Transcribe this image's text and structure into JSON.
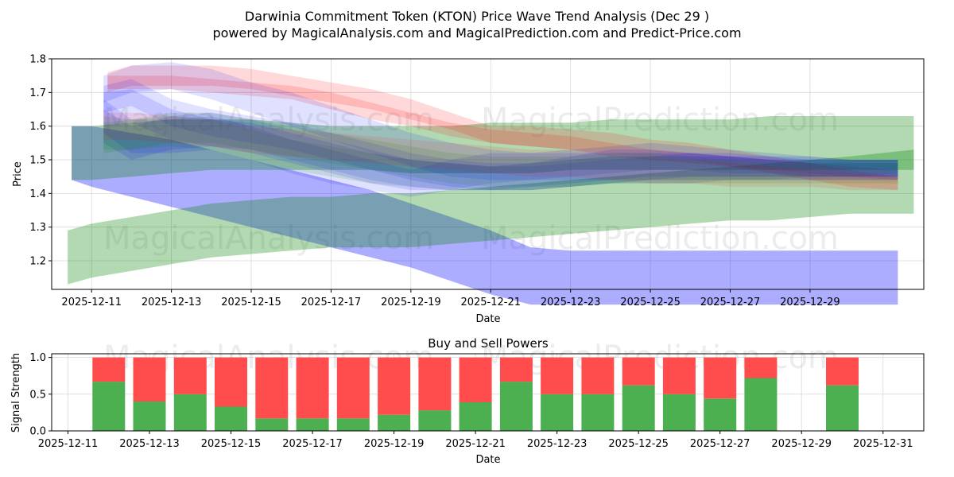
{
  "chart_data": [
    {
      "type": "area",
      "title_line1": "Darwinia Commitment Token (KTON) Price Wave Trend Analysis (Dec 29 )",
      "title_line2": "powered by MagicalAnalysis.com and MagicalPrediction.com and Predict-Price.com",
      "xlabel": "Date",
      "ylabel": "Price",
      "ylim": [
        1.115,
        1.8
      ],
      "xlim": [
        "2025-12-10",
        "2026-01-01"
      ],
      "y_ticks": [
        "1.2",
        "1.3",
        "1.4",
        "1.5",
        "1.6",
        "1.7",
        "1.8"
      ],
      "x_ticks": [
        "2025-12-11",
        "2025-12-13",
        "2025-12-15",
        "2025-12-17",
        "2025-12-19",
        "2025-12-21",
        "2025-12-23",
        "2025-12-25",
        "2025-12-27",
        "2025-12-29"
      ],
      "watermarks": [
        "MagicalAnalysis.com",
        "MagicalPrediction.com",
        "MagicalAnalysis.com",
        "MagicalPrediction.com"
      ],
      "grid": true,
      "bands": [
        {
          "color": "#0000ff",
          "opacity": 0.32,
          "x": [
            10.5,
            11,
            12,
            13,
            14,
            15,
            16,
            17,
            18,
            19,
            20,
            21,
            22,
            23,
            24,
            25,
            26,
            27,
            28,
            29,
            30,
            31.2
          ],
          "upper": [
            1.6,
            1.6,
            1.58,
            1.56,
            1.53,
            1.5,
            1.47,
            1.44,
            1.41,
            1.37,
            1.33,
            1.29,
            1.24,
            1.23,
            1.23,
            1.23,
            1.23,
            1.23,
            1.23,
            1.23,
            1.23,
            1.23
          ],
          "lower": [
            1.44,
            1.42,
            1.39,
            1.36,
            1.33,
            1.3,
            1.27,
            1.24,
            1.21,
            1.18,
            1.14,
            1.1,
            1.07,
            1.07,
            1.07,
            1.07,
            1.07,
            1.07,
            1.07,
            1.07,
            1.07,
            1.07
          ]
        },
        {
          "color": "#008000",
          "opacity": 0.3,
          "x": [
            10.4,
            11,
            12,
            13,
            14,
            15,
            16,
            17,
            18,
            19,
            20,
            21,
            22,
            23,
            24,
            25,
            26,
            27,
            28,
            29,
            30,
            31.6
          ],
          "upper": [
            1.29,
            1.31,
            1.33,
            1.35,
            1.37,
            1.38,
            1.39,
            1.39,
            1.4,
            1.4,
            1.41,
            1.42,
            1.43,
            1.44,
            1.45,
            1.46,
            1.47,
            1.48,
            1.49,
            1.5,
            1.51,
            1.53
          ],
          "lower": [
            1.13,
            1.15,
            1.17,
            1.19,
            1.21,
            1.22,
            1.23,
            1.24,
            1.24,
            1.24,
            1.25,
            1.26,
            1.27,
            1.28,
            1.29,
            1.3,
            1.31,
            1.32,
            1.32,
            1.33,
            1.34,
            1.34
          ]
        },
        {
          "color": "#008000",
          "opacity": 0.3,
          "x": [
            10.5,
            11,
            12,
            13,
            14,
            15,
            16,
            17,
            18,
            19,
            20,
            21,
            22,
            23,
            24,
            25,
            26,
            27,
            28,
            29,
            30,
            31.6
          ],
          "upper": [
            1.6,
            1.6,
            1.61,
            1.62,
            1.62,
            1.62,
            1.61,
            1.6,
            1.6,
            1.6,
            1.6,
            1.61,
            1.61,
            1.61,
            1.62,
            1.62,
            1.62,
            1.62,
            1.63,
            1.63,
            1.63,
            1.63
          ],
          "lower": [
            1.44,
            1.44,
            1.45,
            1.46,
            1.47,
            1.47,
            1.47,
            1.47,
            1.47,
            1.46,
            1.46,
            1.46,
            1.46,
            1.47,
            1.47,
            1.47,
            1.47,
            1.47,
            1.47,
            1.47,
            1.47,
            1.47
          ]
        },
        {
          "color": "#ff0000",
          "opacity": 0.15,
          "x": [
            11.4,
            12,
            13,
            14,
            15,
            16,
            17,
            18,
            19,
            20,
            21,
            22,
            23,
            24,
            25,
            26,
            27,
            28,
            29,
            30,
            31.2
          ],
          "upper": [
            1.76,
            1.78,
            1.78,
            1.78,
            1.77,
            1.75,
            1.73,
            1.71,
            1.68,
            1.64,
            1.6,
            1.6,
            1.59,
            1.58,
            1.56,
            1.55,
            1.53,
            1.51,
            1.49,
            1.47,
            1.45
          ],
          "lower": [
            1.7,
            1.72,
            1.72,
            1.72,
            1.71,
            1.69,
            1.67,
            1.65,
            1.62,
            1.59,
            1.55,
            1.54,
            1.53,
            1.52,
            1.51,
            1.5,
            1.48,
            1.46,
            1.44,
            1.42,
            1.41
          ]
        },
        {
          "color": "#ff0000",
          "opacity": 0.15,
          "x": [
            11.4,
            12,
            13,
            14,
            15,
            16,
            17,
            18,
            19,
            20,
            21,
            22,
            23,
            24,
            25,
            26,
            27,
            28,
            29,
            30,
            31.2
          ],
          "upper": [
            1.75,
            1.75,
            1.75,
            1.74,
            1.73,
            1.72,
            1.7,
            1.67,
            1.64,
            1.61,
            1.59,
            1.58,
            1.57,
            1.55,
            1.53,
            1.52,
            1.51,
            1.5,
            1.49,
            1.48,
            1.47
          ],
          "lower": [
            1.71,
            1.71,
            1.71,
            1.7,
            1.69,
            1.68,
            1.65,
            1.62,
            1.6,
            1.57,
            1.55,
            1.54,
            1.53,
            1.51,
            1.5,
            1.49,
            1.48,
            1.47,
            1.46,
            1.45,
            1.44
          ]
        },
        {
          "color": "#0000ff",
          "opacity": 0.12,
          "x": [
            11.3,
            12,
            13,
            14,
            15,
            16,
            17,
            18,
            19,
            20,
            21,
            22,
            23,
            24,
            25,
            26,
            27,
            28,
            29,
            30,
            31.2
          ],
          "upper": [
            1.75,
            1.78,
            1.79,
            1.77,
            1.73,
            1.7,
            1.66,
            1.62,
            1.58,
            1.55,
            1.53,
            1.52,
            1.52,
            1.52,
            1.52,
            1.52,
            1.51,
            1.51,
            1.5,
            1.5,
            1.5
          ],
          "lower": [
            1.67,
            1.7,
            1.71,
            1.68,
            1.64,
            1.6,
            1.56,
            1.52,
            1.48,
            1.45,
            1.44,
            1.44,
            1.44,
            1.44,
            1.45,
            1.45,
            1.45,
            1.45,
            1.45,
            1.45,
            1.45
          ]
        },
        {
          "color": "#0000ff",
          "opacity": 0.12,
          "x": [
            11.3,
            12,
            13,
            14,
            15,
            16,
            17,
            18,
            19,
            20,
            21,
            22,
            23,
            24,
            25,
            26,
            27,
            28,
            29,
            30,
            31.2
          ],
          "upper": [
            1.72,
            1.74,
            1.68,
            1.65,
            1.63,
            1.61,
            1.58,
            1.55,
            1.52,
            1.5,
            1.49,
            1.49,
            1.5,
            1.51,
            1.51,
            1.51,
            1.51,
            1.5,
            1.5,
            1.5,
            1.5
          ],
          "lower": [
            1.64,
            1.66,
            1.6,
            1.57,
            1.55,
            1.53,
            1.5,
            1.47,
            1.44,
            1.42,
            1.41,
            1.41,
            1.42,
            1.43,
            1.43,
            1.43,
            1.44,
            1.44,
            1.44,
            1.44,
            1.44
          ]
        },
        {
          "color": "#0000ff",
          "opacity": 0.12,
          "x": [
            11.3,
            12,
            13,
            14,
            15,
            16,
            17,
            18,
            19,
            20,
            21,
            22,
            23,
            24,
            25,
            26,
            27,
            28,
            29,
            30,
            31.2
          ],
          "upper": [
            1.7,
            1.71,
            1.65,
            1.62,
            1.61,
            1.58,
            1.55,
            1.52,
            1.5,
            1.49,
            1.48,
            1.48,
            1.49,
            1.5,
            1.51,
            1.52,
            1.52,
            1.51,
            1.51,
            1.5,
            1.5
          ],
          "lower": [
            1.6,
            1.61,
            1.56,
            1.54,
            1.53,
            1.5,
            1.47,
            1.44,
            1.42,
            1.41,
            1.41,
            1.41,
            1.42,
            1.43,
            1.44,
            1.45,
            1.45,
            1.45,
            1.45,
            1.45,
            1.45
          ]
        },
        {
          "color": "#0000ff",
          "opacity": 0.12,
          "x": [
            11.3,
            12,
            13,
            14,
            15,
            16,
            17,
            18,
            19,
            20,
            21,
            22,
            23,
            24,
            25,
            26,
            27,
            28,
            29,
            30,
            31.2
          ],
          "upper": [
            1.68,
            1.62,
            1.62,
            1.63,
            1.6,
            1.56,
            1.53,
            1.5,
            1.47,
            1.5,
            1.52,
            1.52,
            1.53,
            1.54,
            1.55,
            1.54,
            1.53,
            1.52,
            1.51,
            1.5,
            1.5
          ],
          "lower": [
            1.58,
            1.52,
            1.52,
            1.53,
            1.5,
            1.46,
            1.43,
            1.41,
            1.39,
            1.41,
            1.43,
            1.44,
            1.45,
            1.46,
            1.47,
            1.47,
            1.46,
            1.46,
            1.45,
            1.45,
            1.45
          ]
        },
        {
          "color": "#0000ff",
          "opacity": 0.12,
          "x": [
            11.3,
            12,
            13,
            14,
            15,
            16,
            17,
            18,
            19,
            20,
            21,
            22,
            23,
            24,
            25,
            26,
            27,
            28,
            29,
            30,
            31.2
          ],
          "upper": [
            1.65,
            1.6,
            1.63,
            1.64,
            1.62,
            1.59,
            1.56,
            1.53,
            1.5,
            1.49,
            1.48,
            1.49,
            1.51,
            1.53,
            1.53,
            1.52,
            1.51,
            1.5,
            1.49,
            1.49,
            1.49
          ],
          "lower": [
            1.55,
            1.5,
            1.53,
            1.54,
            1.52,
            1.49,
            1.46,
            1.43,
            1.41,
            1.41,
            1.41,
            1.42,
            1.43,
            1.44,
            1.44,
            1.44,
            1.44,
            1.44,
            1.44,
            1.44,
            1.44
          ]
        },
        {
          "color": "#008000",
          "opacity": 0.12,
          "x": [
            11.3,
            12,
            13,
            14,
            15,
            16,
            17,
            18,
            19,
            20,
            21,
            22,
            23,
            24,
            25,
            26,
            27,
            28,
            29,
            30,
            31.2
          ],
          "upper": [
            1.63,
            1.62,
            1.64,
            1.64,
            1.62,
            1.6,
            1.58,
            1.56,
            1.54,
            1.52,
            1.51,
            1.51,
            1.51,
            1.52,
            1.52,
            1.51,
            1.5,
            1.5,
            1.5,
            1.5,
            1.5
          ],
          "lower": [
            1.53,
            1.53,
            1.55,
            1.55,
            1.53,
            1.51,
            1.49,
            1.47,
            1.45,
            1.43,
            1.42,
            1.42,
            1.42,
            1.43,
            1.44,
            1.44,
            1.44,
            1.44,
            1.45,
            1.45,
            1.46
          ]
        },
        {
          "color": "#008000",
          "opacity": 0.12,
          "x": [
            11.3,
            12,
            13,
            14,
            15,
            16,
            17,
            18,
            19,
            20,
            21,
            22,
            23,
            24,
            25,
            26,
            27,
            28,
            29,
            30,
            31.2
          ],
          "upper": [
            1.61,
            1.62,
            1.63,
            1.62,
            1.59,
            1.56,
            1.54,
            1.52,
            1.5,
            1.49,
            1.48,
            1.49,
            1.5,
            1.51,
            1.51,
            1.5,
            1.5,
            1.49,
            1.49,
            1.49,
            1.49
          ],
          "lower": [
            1.52,
            1.53,
            1.54,
            1.53,
            1.5,
            1.47,
            1.45,
            1.43,
            1.42,
            1.41,
            1.41,
            1.41,
            1.42,
            1.43,
            1.43,
            1.43,
            1.43,
            1.43,
            1.43,
            1.43,
            1.43
          ]
        },
        {
          "color": "#ff0000",
          "opacity": 0.1,
          "x": [
            11.3,
            12,
            13,
            14,
            15,
            16,
            17,
            18,
            19,
            20,
            21,
            22,
            23,
            24,
            25,
            26,
            27,
            28,
            29,
            30,
            31.2
          ],
          "upper": [
            1.64,
            1.64,
            1.63,
            1.62,
            1.6,
            1.59,
            1.58,
            1.57,
            1.56,
            1.55,
            1.54,
            1.53,
            1.53,
            1.52,
            1.51,
            1.5,
            1.49,
            1.48,
            1.47,
            1.46,
            1.45
          ],
          "lower": [
            1.56,
            1.56,
            1.55,
            1.54,
            1.52,
            1.51,
            1.5,
            1.49,
            1.48,
            1.47,
            1.46,
            1.45,
            1.45,
            1.44,
            1.43,
            1.43,
            1.42,
            1.42,
            1.42,
            1.41,
            1.41
          ]
        }
      ]
    },
    {
      "type": "bar",
      "title": "Buy and Sell Powers",
      "xlabel": "Date",
      "ylabel": "Signal Strength",
      "ylim": [
        0,
        1.05
      ],
      "y_ticks": [
        "0.0",
        "0.5",
        "1.0"
      ],
      "x_ticks": [
        "2025-12-11",
        "2025-12-13",
        "2025-12-15",
        "2025-12-17",
        "2025-12-19",
        "2025-12-21",
        "2025-12-23",
        "2025-12-25",
        "2025-12-27",
        "2025-12-29",
        "2025-12-31"
      ],
      "x_tick_days": [
        11,
        13,
        15,
        17,
        19,
        21,
        23,
        25,
        27,
        29,
        31
      ],
      "xlim_days": [
        10.6,
        32.0
      ],
      "categories": [
        "2025-12-12",
        "2025-12-13",
        "2025-12-14",
        "2025-12-15",
        "2025-12-16",
        "2025-12-17",
        "2025-12-18",
        "2025-12-19",
        "2025-12-20",
        "2025-12-21",
        "2025-12-22",
        "2025-12-23",
        "2025-12-24",
        "2025-12-25",
        "2025-12-26",
        "2025-12-27",
        "2025-12-28",
        "2025-12-30"
      ],
      "days": [
        12,
        13,
        14,
        15,
        16,
        17,
        18,
        19,
        20,
        21,
        22,
        23,
        24,
        25,
        26,
        27,
        28,
        30
      ],
      "series": [
        {
          "name": "Buy",
          "color": "#4caf50",
          "values": [
            0.67,
            0.4,
            0.5,
            0.33,
            0.17,
            0.17,
            0.17,
            0.22,
            0.28,
            0.39,
            0.67,
            0.5,
            0.5,
            0.62,
            0.5,
            0.44,
            0.72,
            0.62
          ]
        },
        {
          "name": "Sell",
          "color": "#ff4d4d",
          "values": [
            0.33,
            0.6,
            0.5,
            0.67,
            0.83,
            0.83,
            0.83,
            0.78,
            0.72,
            0.61,
            0.33,
            0.5,
            0.5,
            0.38,
            0.5,
            0.56,
            0.28,
            0.38
          ]
        }
      ],
      "watermarks": [
        "MagicalAnalysis.com",
        "MagicalPrediction.com"
      ]
    }
  ]
}
